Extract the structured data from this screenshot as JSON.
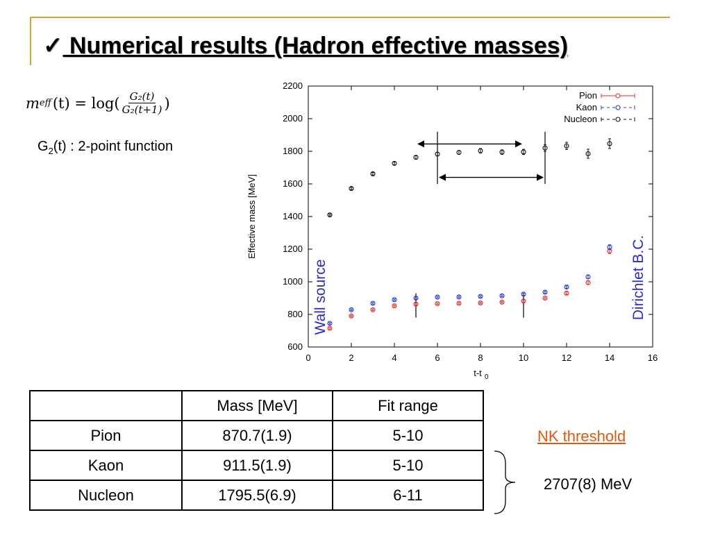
{
  "slide": {
    "checkmark": "✓",
    "title": " Numerical results (Hadron effective masses)",
    "formula": {
      "lhs": "m",
      "lhs_sub": "eff",
      "lhs_arg": "(t) = log(",
      "num": "G₂(t)",
      "den": "G₂(t+1)",
      "close": ")"
    },
    "g2_note": {
      "prefix": "G",
      "sub": "2",
      "suffix": "(t) : 2-point function"
    },
    "table": {
      "headers": [
        "",
        "Mass [MeV]",
        "Fit range"
      ],
      "rows": [
        [
          "Pion",
          "870.7(1.9)",
          "5-10"
        ],
        [
          "Kaon",
          "911.5(1.9)",
          "5-10"
        ],
        [
          "Nucleon",
          "1795.5(6.9)",
          "6-11"
        ]
      ]
    },
    "nk_threshold": {
      "label": "NK threshold",
      "value": "2707(8) MeV",
      "color": "#e05a0c"
    }
  },
  "chart_data": {
    "type": "scatter",
    "xlabel": "t-t",
    "xlabel_sub": "0",
    "ylabel": "Effective mass [MeV]",
    "xlim": [
      0,
      16
    ],
    "ylim": [
      600,
      2200
    ],
    "xticks": [
      0,
      2,
      4,
      6,
      8,
      10,
      12,
      14,
      16
    ],
    "yticks": [
      600,
      800,
      1000,
      1200,
      1400,
      1600,
      1800,
      2000,
      2200
    ],
    "grid": false,
    "legend_position": "top-right",
    "series": [
      {
        "name": "Pion",
        "color": "#e03030",
        "points": [
          [
            1,
            715
          ],
          [
            2,
            790
          ],
          [
            3,
            828
          ],
          [
            4,
            852
          ],
          [
            5,
            863
          ],
          [
            6,
            866
          ],
          [
            7,
            868
          ],
          [
            8,
            870
          ],
          [
            9,
            875
          ],
          [
            10,
            882
          ],
          [
            11,
            900
          ],
          [
            12,
            930
          ],
          [
            13,
            995
          ],
          [
            14,
            1188
          ]
        ],
        "errors": [
          5,
          5,
          5,
          5,
          5,
          5,
          5,
          5,
          5,
          6,
          6,
          7,
          10,
          15
        ]
      },
      {
        "name": "Kaon",
        "color": "#2040d0",
        "points": [
          [
            1,
            745
          ],
          [
            2,
            828
          ],
          [
            3,
            868
          ],
          [
            4,
            890
          ],
          [
            5,
            900
          ],
          [
            6,
            906
          ],
          [
            7,
            907
          ],
          [
            8,
            910
          ],
          [
            9,
            914
          ],
          [
            10,
            924
          ],
          [
            11,
            936
          ],
          [
            12,
            968
          ],
          [
            13,
            1030
          ],
          [
            14,
            1212
          ]
        ],
        "errors": [
          5,
          5,
          5,
          5,
          5,
          5,
          5,
          5,
          5,
          6,
          6,
          7,
          10,
          15
        ]
      },
      {
        "name": "Nucleon",
        "color": "#111111",
        "points": [
          [
            1,
            1410
          ],
          [
            2,
            1572
          ],
          [
            3,
            1662
          ],
          [
            4,
            1726
          ],
          [
            5,
            1763
          ],
          [
            6,
            1783
          ],
          [
            7,
            1793
          ],
          [
            8,
            1803
          ],
          [
            9,
            1795
          ],
          [
            10,
            1796
          ],
          [
            11,
            1820
          ],
          [
            12,
            1833
          ],
          [
            13,
            1785
          ],
          [
            14,
            1847
          ]
        ],
        "errors": [
          6,
          7,
          8,
          9,
          10,
          10,
          12,
          14,
          14,
          16,
          20,
          22,
          28,
          30
        ]
      }
    ],
    "annotations": [
      {
        "text": "Wall source",
        "color": "#2a2ad0",
        "rotation": -90
      },
      {
        "text": "Dirichlet B.C.",
        "color": "#2a2ad0",
        "rotation": -90
      }
    ],
    "fit_ranges": [
      {
        "x": [
          5,
          10
        ],
        "y_arrow": 1845,
        "y_span": [
          780,
          930
        ]
      },
      {
        "x": [
          6,
          11
        ],
        "y_arrow": 1640,
        "y_span": [
          1600,
          1920
        ]
      }
    ]
  }
}
